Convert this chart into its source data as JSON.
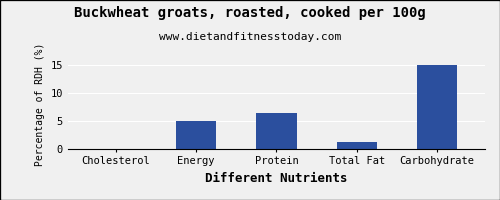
{
  "title": "Buckwheat groats, roasted, cooked per 100g",
  "subtitle": "www.dietandfitnesstoday.com",
  "xlabel": "Different Nutrients",
  "ylabel": "Percentage of RDH (%)",
  "categories": [
    "Cholesterol",
    "Energy",
    "Protein",
    "Total Fat",
    "Carbohydrate"
  ],
  "values": [
    0,
    5,
    6.3,
    1.2,
    15
  ],
  "bar_color": "#2b4f9e",
  "ylim": [
    0,
    16
  ],
  "yticks": [
    0,
    5,
    10,
    15
  ],
  "background_color": "#f0f0f0",
  "title_fontsize": 10,
  "subtitle_fontsize": 8,
  "xlabel_fontsize": 9,
  "ylabel_fontsize": 7,
  "tick_fontsize": 7.5
}
